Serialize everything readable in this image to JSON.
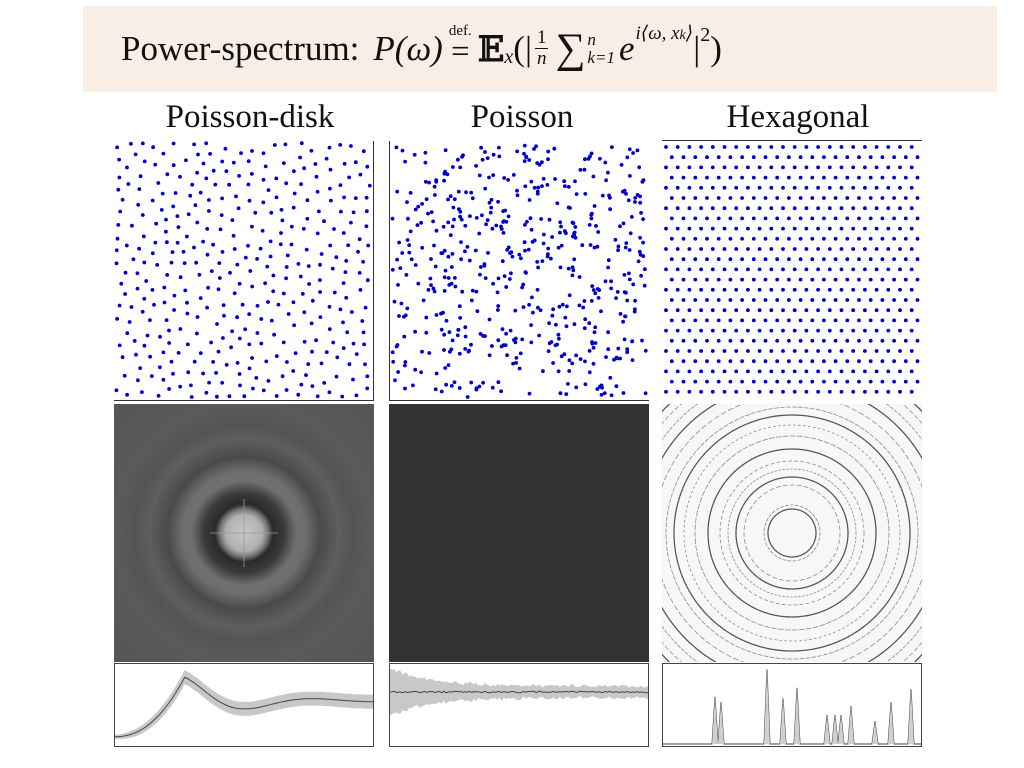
{
  "header": {
    "label": "Power-spectrum:",
    "formula_P": "P(ω)",
    "def_label": "def.",
    "equals": "=",
    "expect": "𝔼",
    "expect_sub": "x",
    "open": "(|",
    "frac_num": "1",
    "frac_den": "n",
    "sum_sym": "∑",
    "sum_upper": "n",
    "sum_lower": "k=1",
    "exp_base": "e",
    "exp_sup": "i⟨ω, x",
    "exp_sup_sub": "k",
    "exp_sup_close": "⟩",
    "close": "|",
    "close_sup": "2",
    "close_paren": ")"
  },
  "columns": [
    {
      "title": "Poisson-disk",
      "type": "poisson-disk"
    },
    {
      "title": "Poisson",
      "type": "poisson"
    },
    {
      "title": "Hexagonal",
      "type": "hexagonal"
    }
  ],
  "colors": {
    "point": "#0000cc",
    "banner": "#f8eee6",
    "profile_band": "#c8c8c8",
    "profile_line": "#444444"
  }
}
